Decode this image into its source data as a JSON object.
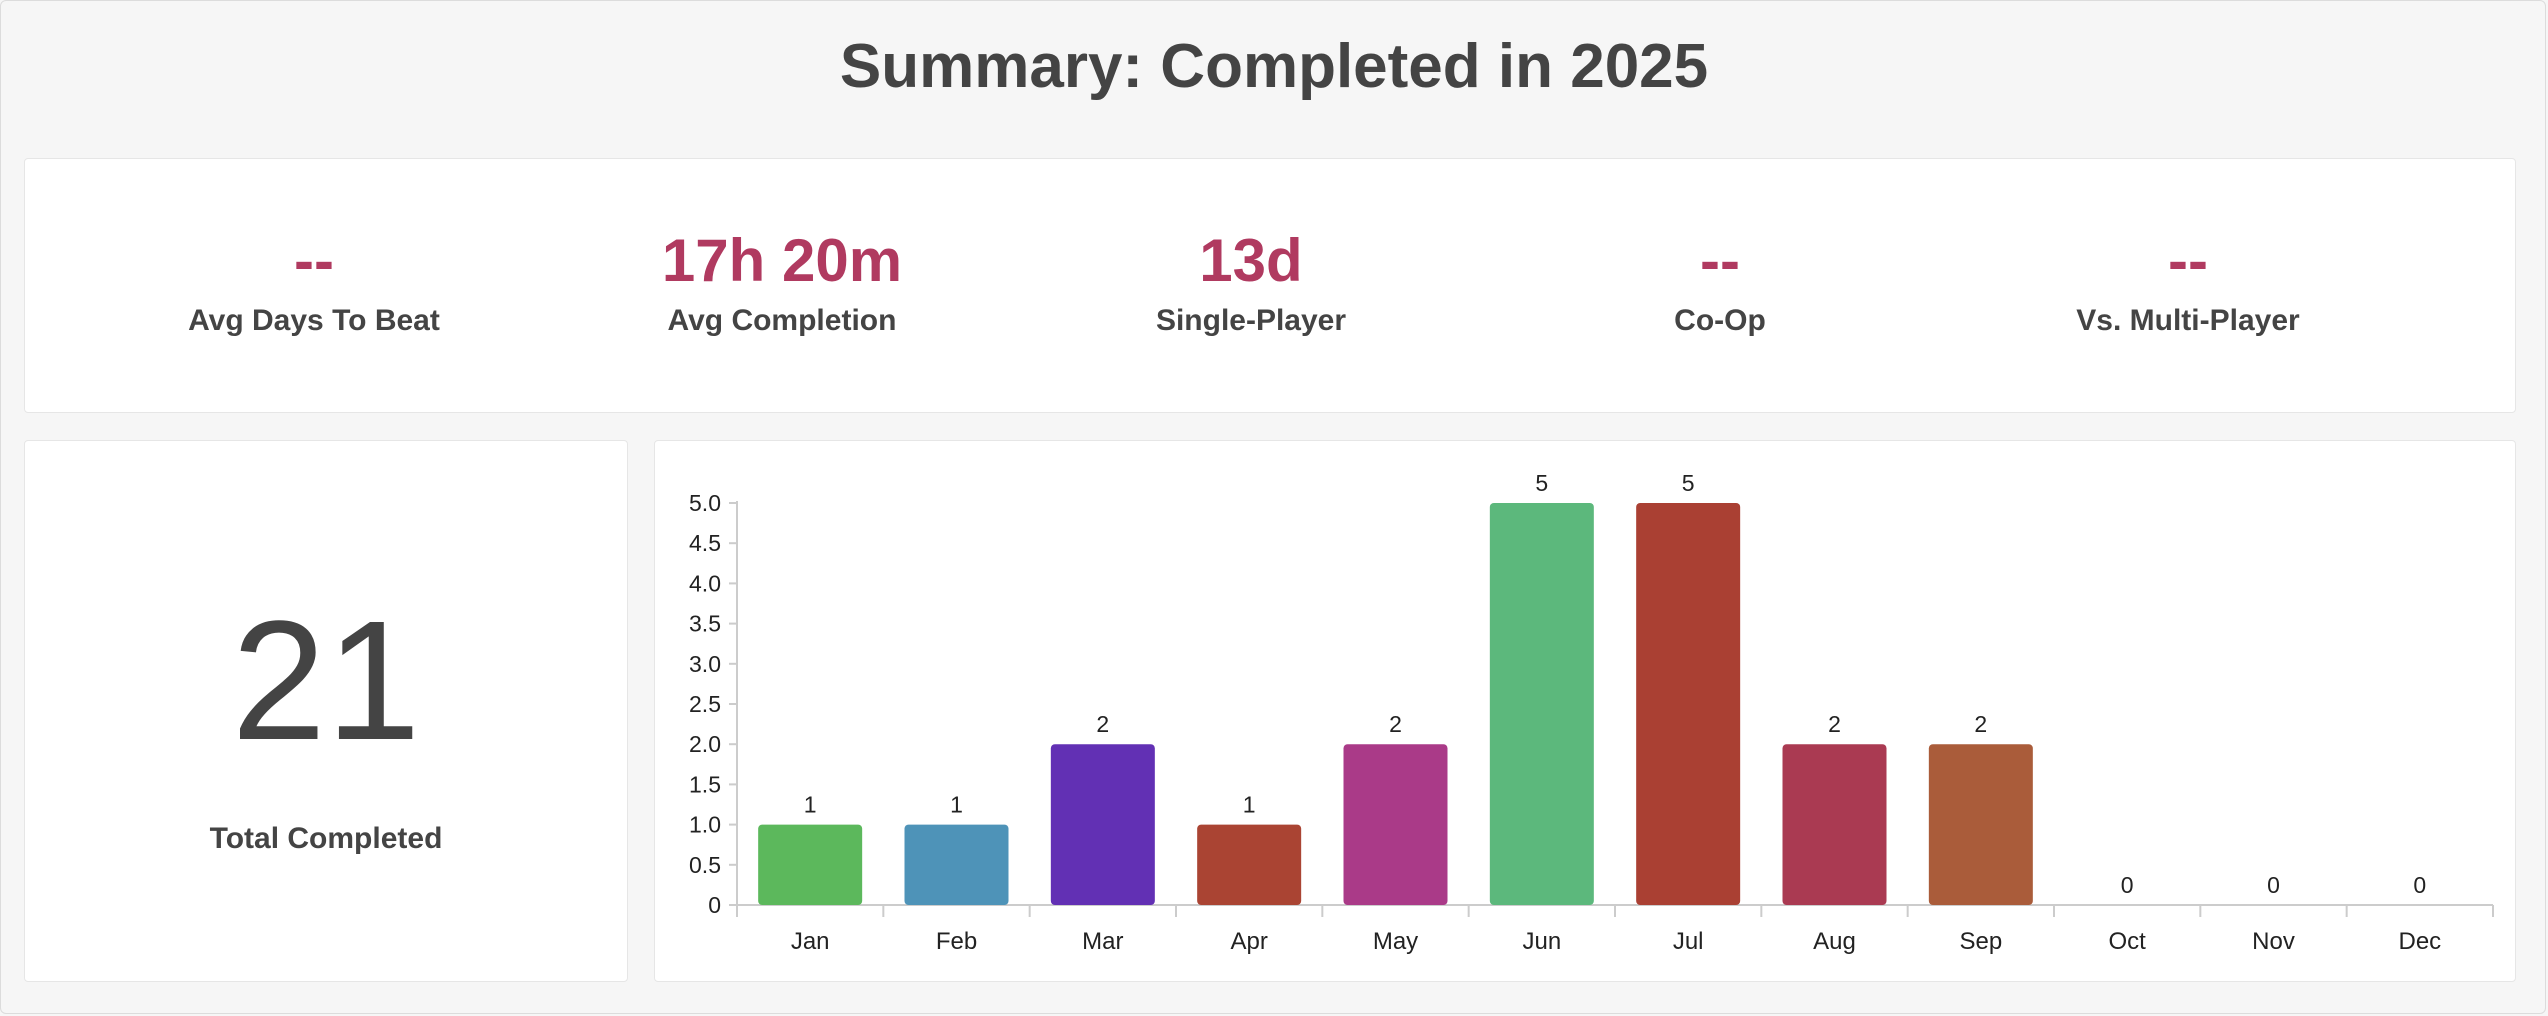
{
  "header": {
    "title": "Summary: Completed in 2025"
  },
  "stats": [
    {
      "value": "--",
      "label": "Avg Days To Beat"
    },
    {
      "value": "17h 20m",
      "label": "Avg Completion"
    },
    {
      "value": "13d",
      "label": "Single-Player"
    },
    {
      "value": "--",
      "label": "Co-Op"
    },
    {
      "value": "--",
      "label": "Vs. Multi-Player"
    }
  ],
  "total": {
    "value": "21",
    "label": "Total Completed"
  },
  "colors": {
    "stat_value": "#b03a60",
    "text": "#444444",
    "page_background": "#f6f6f6",
    "card_background": "#ffffff"
  },
  "chart_data": {
    "type": "bar",
    "categories": [
      "Jan",
      "Feb",
      "Mar",
      "Apr",
      "May",
      "Jun",
      "Jul",
      "Aug",
      "Sep",
      "Oct",
      "Nov",
      "Dec"
    ],
    "values": [
      1,
      1,
      2,
      1,
      2,
      5,
      5,
      2,
      2,
      0,
      0,
      0
    ],
    "bar_colors": [
      "#5cb85c",
      "#4e93b8",
      "#6230b4",
      "#aa4433",
      "#aa3a88",
      "#5cb87c",
      "#aa4033",
      "#aa3a52",
      "#aa5c3a",
      "#999999",
      "#999999",
      "#999999"
    ],
    "data_labels": [
      "1",
      "1",
      "2",
      "1",
      "2",
      "5",
      "5",
      "2",
      "2",
      "0",
      "0",
      "0"
    ],
    "y_ticks": [
      "0",
      "0.5",
      "1.0",
      "1.5",
      "2.0",
      "2.5",
      "3.0",
      "3.5",
      "4.0",
      "4.5",
      "5.0"
    ],
    "ylim": [
      0,
      5
    ],
    "title": "",
    "xlabel": "",
    "ylabel": "",
    "grid": false,
    "legend": "none"
  }
}
